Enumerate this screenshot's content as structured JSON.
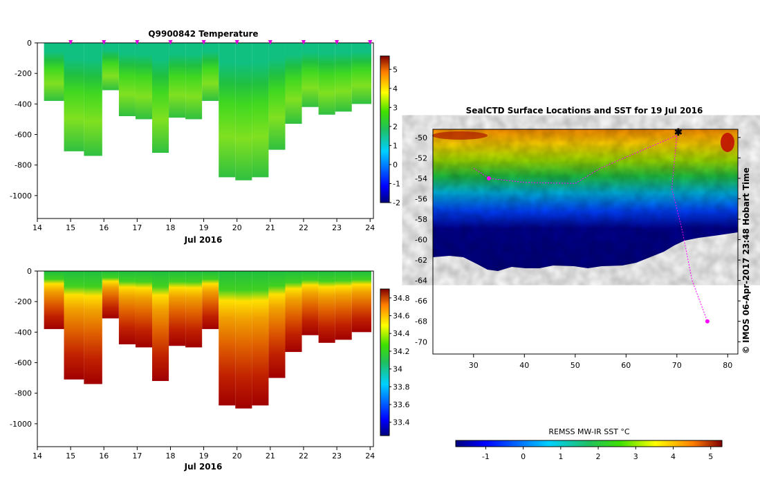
{
  "chart_data": [
    {
      "type": "heatmap",
      "name": "temperature-section",
      "title": "Q9900842  Temperature",
      "xlabel": "Jul 2016",
      "ylabel": "",
      "x_ticks": [
        "14",
        "15",
        "16",
        "17",
        "18",
        "19",
        "20",
        "21",
        "22",
        "23",
        "24"
      ],
      "xlim": [
        14,
        24.1
      ],
      "y_ticks": [
        "0",
        "-200",
        "-400",
        "-600",
        "-800",
        "-1000"
      ],
      "ylim": [
        -1150,
        0
      ],
      "profile_days": [
        14.5,
        15.1,
        15.7,
        16.2,
        16.7,
        17.2,
        17.7,
        18.2,
        18.7,
        19.2,
        19.7,
        20.2,
        20.7,
        21.2,
        21.7,
        22.2,
        22.7,
        23.2,
        23.7
      ],
      "profile_max_depth": [
        -380,
        -710,
        -740,
        -310,
        -480,
        -500,
        -720,
        -490,
        -500,
        -380,
        -880,
        -900,
        -880,
        -700,
        -530,
        -420,
        -470,
        -450,
        -400
      ],
      "marker_days": [
        15,
        16,
        17,
        18,
        19,
        20,
        21,
        22,
        23,
        24
      ],
      "colorbar": {
        "min": -2,
        "max": 5.7,
        "ticks": [
          "-2",
          "-1",
          "0",
          "1",
          "2",
          "3",
          "4",
          "5"
        ],
        "colormap": "jet"
      }
    },
    {
      "type": "heatmap",
      "name": "salinity-section",
      "title": "",
      "xlabel": "Jul 2016",
      "ylabel": "",
      "x_ticks": [
        "14",
        "15",
        "16",
        "17",
        "18",
        "19",
        "20",
        "21",
        "22",
        "23",
        "24"
      ],
      "xlim": [
        14,
        24.1
      ],
      "y_ticks": [
        "0",
        "-200",
        "-400",
        "-600",
        "-800",
        "-1000"
      ],
      "ylim": [
        -1150,
        0
      ],
      "profile_days": [
        14.5,
        15.1,
        15.7,
        16.2,
        16.7,
        17.2,
        17.7,
        18.2,
        18.7,
        19.2,
        19.7,
        20.2,
        20.7,
        21.2,
        21.7,
        22.2,
        22.7,
        23.2,
        23.7
      ],
      "profile_max_depth": [
        -380,
        -710,
        -740,
        -310,
        -480,
        -500,
        -720,
        -490,
        -500,
        -380,
        -880,
        -900,
        -880,
        -700,
        -530,
        -420,
        -470,
        -450,
        -400
      ],
      "colorbar": {
        "min": 33.25,
        "max": 34.9,
        "ticks": [
          "33.4",
          "33.6",
          "33.8",
          "34",
          "34.2",
          "34.4",
          "34.6",
          "34.8"
        ],
        "colormap": "jet"
      }
    },
    {
      "type": "heatmap",
      "name": "sst-map",
      "title": "SealCTD Surface Locations and SST for 19 Jul 2016",
      "xlabel": "",
      "ylabel": "",
      "x_ticks": [
        "30",
        "40",
        "50",
        "60",
        "70",
        "80"
      ],
      "xlim": [
        22,
        82
      ],
      "y_ticks": [
        "-50",
        "-52",
        "-54",
        "-56",
        "-58",
        "-60",
        "-62",
        "-64",
        "-66",
        "-68",
        "-70"
      ],
      "ylim": [
        -71.2,
        -49.2
      ],
      "track": [
        [
          30,
          -53
        ],
        [
          33,
          -54
        ],
        [
          40,
          -54.4
        ],
        [
          50,
          -54.5
        ],
        [
          55,
          -53
        ],
        [
          62,
          -51.5
        ],
        [
          70,
          -49.8
        ],
        [
          69,
          -55
        ],
        [
          71,
          -59
        ],
        [
          73,
          -64
        ],
        [
          76,
          -68
        ]
      ],
      "colorbar": {
        "label": "REMSS MW-IR SST °C",
        "min": -1.8,
        "max": 5.3,
        "ticks": [
          "-1",
          "0",
          "1",
          "2",
          "3",
          "4",
          "5"
        ],
        "colormap": "jet"
      }
    }
  ],
  "credit": "©  IMOS 06-Apr-2017 23:48 Hobart Time"
}
